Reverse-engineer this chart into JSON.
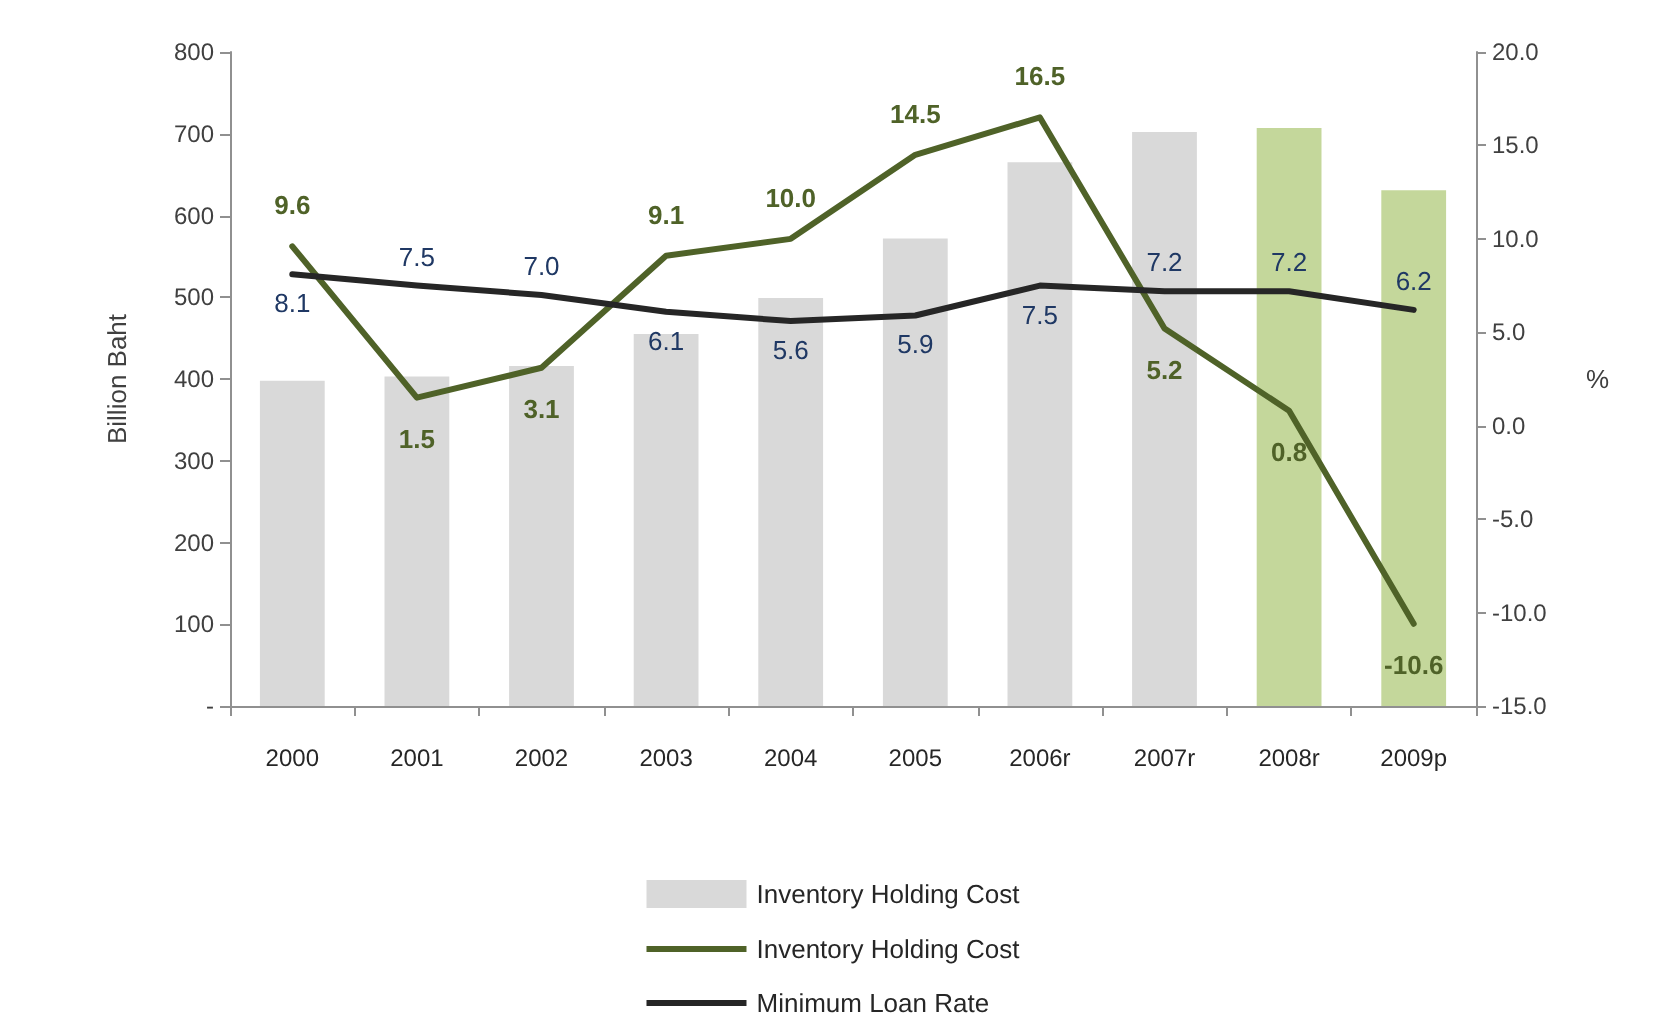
{
  "chart_data": {
    "type": "bar",
    "ylabel": "Billion Baht",
    "y2label": "%",
    "categories": [
      "2000",
      "2001",
      "2002",
      "2003",
      "2004",
      "2005",
      "2006r",
      "2007r",
      "2008r",
      "2009p"
    ],
    "series": [
      {
        "name": "Inventory Holding Cost",
        "colors": [
          "#d9d9d9",
          "#d9d9d9",
          "#d9d9d9",
          "#d9d9d9",
          "#d9d9d9",
          "#d9d9d9",
          "#d9d9d9",
          "#d9d9d9",
          "#c4d79b",
          "#c4d79b"
        ],
        "color": "#d9d9d9",
        "values": [
          398,
          403,
          416,
          455,
          499,
          572,
          665,
          702,
          707,
          631
        ]
      },
      {
        "name": "Inventory Holding Cost",
        "type": "line",
        "axis": "y2",
        "color": "#4f6228",
        "values": [
          9.6,
          1.5,
          3.1,
          9.1,
          10.0,
          14.5,
          16.5,
          5.2,
          0.8,
          -10.6
        ],
        "value_labels": [
          "9.6",
          "1.5",
          "3.1",
          "9.1",
          "10.0",
          "14.5",
          "16.5",
          "5.2",
          "0.8",
          "-10.6"
        ]
      },
      {
        "name": "Minimum Loan Rate",
        "type": "line",
        "axis": "y2",
        "color": "#262626",
        "values": [
          8.1,
          7.5,
          7.0,
          6.1,
          5.6,
          5.9,
          7.5,
          7.2,
          7.2,
          6.2
        ],
        "value_labels": [
          "8.1",
          "7.5",
          "7.0",
          "6.1",
          "5.6",
          "5.9",
          "7.5",
          "7.2",
          "7.2",
          "6.2"
        ]
      }
    ],
    "ylim": [
      0,
      800
    ],
    "yticks": [
      {
        "value": 0,
        "label": "-"
      },
      100,
      200,
      300,
      400,
      500,
      600,
      700,
      800
    ],
    "y2lim": [
      -15,
      20
    ],
    "y2ticks": [
      {
        "value": -15,
        "label": "-15.0"
      },
      {
        "value": -10,
        "label": "-10.0"
      },
      {
        "value": -5,
        "label": "-5.0"
      },
      {
        "value": 0,
        "label": "0.0"
      },
      {
        "value": 5,
        "label": "5.0"
      },
      {
        "value": 10,
        "label": "10.0"
      },
      {
        "value": 15,
        "label": "15.0"
      },
      {
        "value": 20,
        "label": "20.0"
      }
    ],
    "grid": false,
    "legend": "bottom",
    "marker": "none",
    "line_style": "solid"
  }
}
